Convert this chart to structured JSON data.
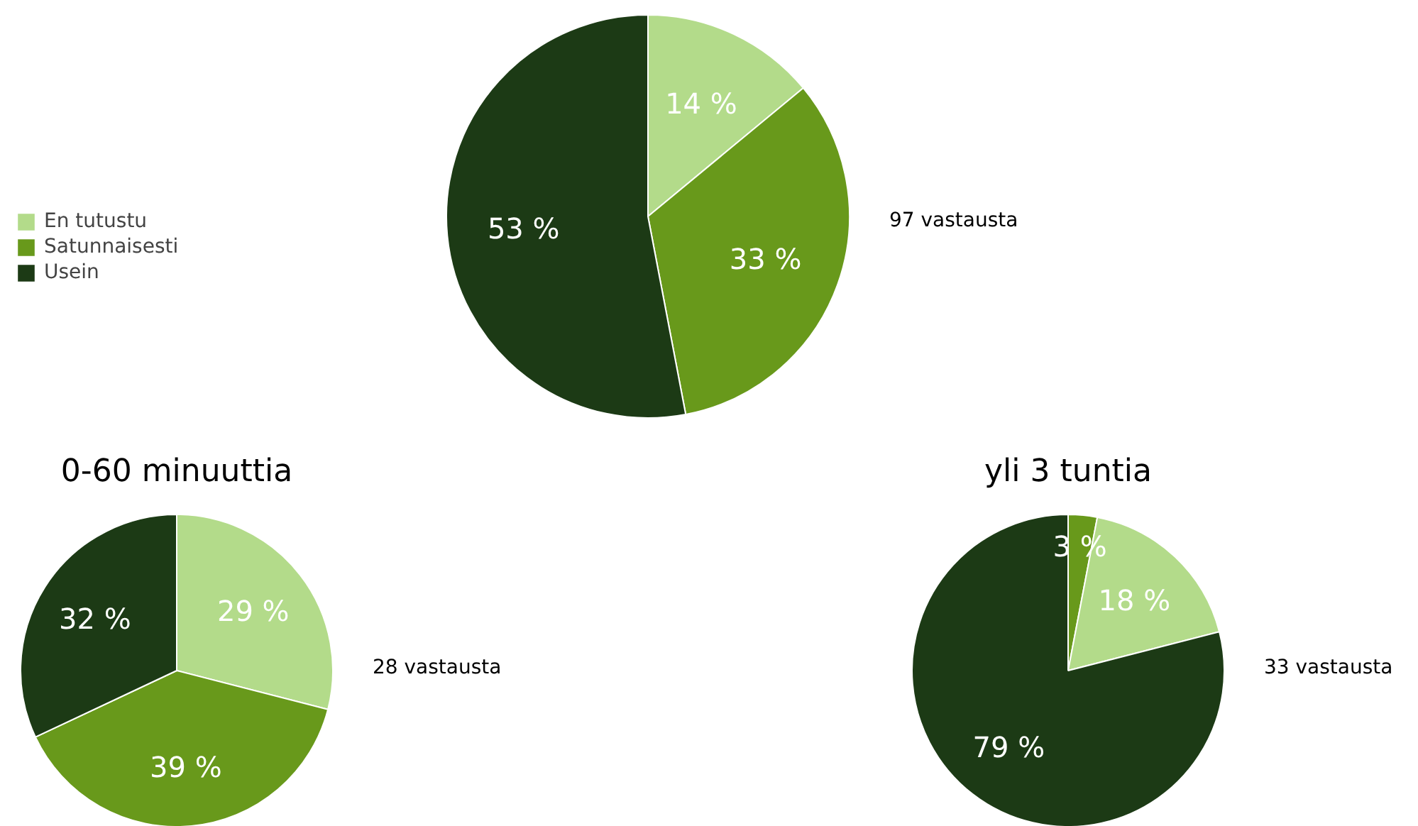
{
  "chart_data": [
    {
      "type": "pie",
      "categories": [
        "En tutustu",
        "Satunnaisesti",
        "Usein"
      ],
      "values": [
        14,
        33,
        53
      ],
      "value_labels": [
        "14 %",
        "33 %",
        "53 %"
      ],
      "colors": [
        "#b3db8a",
        "#68991b",
        "#1c3a15"
      ],
      "legend": "left",
      "annotations": [
        "97 vastausta"
      ]
    },
    {
      "type": "pie",
      "title": "0-60 minuuttia",
      "categories": [
        null,
        null,
        null
      ],
      "values": [
        29,
        39,
        32
      ],
      "value_labels": [
        "29 %",
        "39 %",
        "32 %"
      ],
      "colors": [
        "#b3db8a",
        "#68991b",
        "#1c3a15"
      ],
      "annotations": [
        "28 vastausta"
      ]
    },
    {
      "type": "pie",
      "title": "yli 3 tuntia",
      "categories": [
        null,
        null,
        null
      ],
      "values": [
        3,
        18,
        79
      ],
      "value_labels": [
        "3 %",
        "18 %",
        "79 %"
      ],
      "colors": [
        "#68991b",
        "#b3db8a",
        "#1c3a15"
      ],
      "annotations": [
        "33 vastausta"
      ]
    }
  ]
}
